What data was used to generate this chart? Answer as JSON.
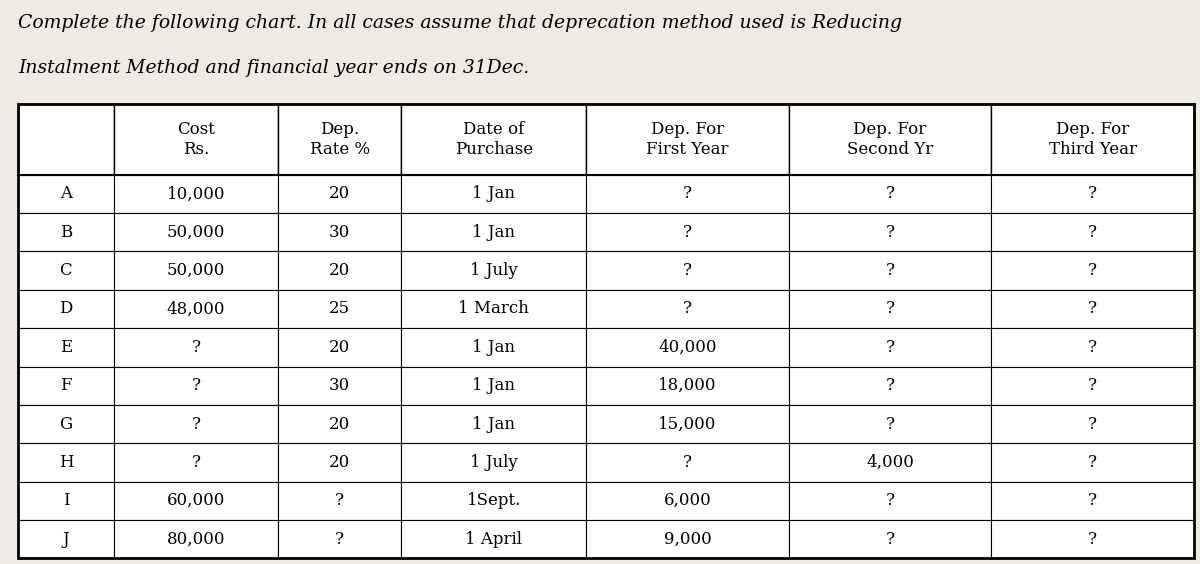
{
  "title_line1": "Complete the following chart. In all cases assume that deprecation method used is Reducing",
  "title_line2": "Instalment Method and financial year ends on 31Dec.",
  "headers_row1": [
    "",
    "Cost",
    "Dep.",
    "Date of",
    "Dep. For",
    "Dep. For",
    "Dep. For"
  ],
  "headers_row2": [
    "",
    "Rs.",
    "Rate %",
    "Purchase",
    "First Year",
    "Second Yr",
    "Third Year"
  ],
  "rows": [
    [
      "A",
      "10,000",
      "20",
      "1 Jan",
      "?",
      "?",
      "?"
    ],
    [
      "B",
      "50,000",
      "30",
      "1 Jan",
      "?",
      "?",
      "?"
    ],
    [
      "C",
      "50,000",
      "20",
      "1 July",
      "?",
      "?",
      "?"
    ],
    [
      "D",
      "48,000",
      "25",
      "1 March",
      "?",
      "?",
      "?"
    ],
    [
      "E",
      "?",
      "20",
      "1 Jan",
      "40,000",
      "?",
      "?"
    ],
    [
      "F",
      "?",
      "30",
      "1 Jan",
      "18,000",
      "?",
      "?"
    ],
    [
      "G",
      "?",
      "20",
      "1 Jan",
      "15,000",
      "?",
      "?"
    ],
    [
      "H",
      "?",
      "20",
      "1 July",
      "?",
      "4,000",
      "?"
    ],
    [
      "I",
      "60,000",
      "?",
      "1Sept.",
      "6,000",
      "?",
      "?"
    ],
    [
      "J",
      "80,000",
      "?",
      "1 April",
      "9,000",
      "?",
      "?"
    ]
  ],
  "bg_color": "#f0ebe0",
  "table_bg": "#ffffff",
  "font_size_title": 13.5,
  "font_size_header": 12,
  "font_size_table": 12,
  "col_props": [
    0.07,
    0.12,
    0.09,
    0.135,
    0.148,
    0.148,
    0.148
  ]
}
